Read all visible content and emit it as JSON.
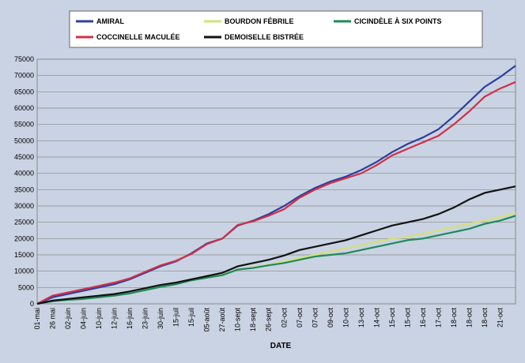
{
  "chart_data": {
    "type": "line",
    "xlabel": "DATE",
    "categories": [
      "01-mai",
      "26 mai",
      "02-juin",
      "04-juin",
      "10-juin",
      "12-juin",
      "16-juin",
      "23-juin",
      "30-juin",
      "15-juil",
      "15-juil",
      "05-août",
      "27-août",
      "10-sept",
      "18-sept",
      "26-sept",
      "02-oct",
      "07-oct",
      "07-oct",
      "09-oct",
      "10-oct",
      "13-oct",
      "14-oct",
      "15-oct",
      "15-oct",
      "16-oct",
      "17-oct",
      "18-oct",
      "18-oct",
      "18-oct",
      "21-oct",
      null
    ],
    "series": [
      {
        "name": "AMIRAL",
        "color": "#2f3f9e",
        "values": [
          0,
          2000,
          3000,
          4000,
          5000,
          6000,
          7500,
          9500,
          11500,
          13000,
          15500,
          18500,
          20000,
          24000,
          25500,
          27500,
          30000,
          33000,
          35500,
          37500,
          39000,
          41000,
          43500,
          46500,
          49000,
          51000,
          53500,
          57500,
          62000,
          66500,
          69500,
          73000
        ]
      },
      {
        "name": "BOURDON FÉBRILE",
        "color": "#d6e07a",
        "values": [
          0,
          800,
          1200,
          1500,
          2000,
          2500,
          3200,
          4200,
          5200,
          6000,
          7200,
          8000,
          9000,
          10500,
          11200,
          12000,
          13000,
          14000,
          15000,
          16000,
          17000,
          18000,
          19000,
          20000,
          20500,
          21500,
          22500,
          23500,
          24500,
          25500,
          26500,
          28000
        ]
      },
      {
        "name": "CICINDÈLE À SIX POINTS",
        "color": "#1d8a5a",
        "values": [
          0,
          800,
          1200,
          1500,
          2000,
          2500,
          3200,
          4200,
          5200,
          6000,
          7200,
          8000,
          8800,
          10500,
          11000,
          11800,
          12500,
          13500,
          14500,
          15000,
          15500,
          16500,
          17500,
          18500,
          19500,
          20000,
          21000,
          22000,
          23000,
          24500,
          25500,
          27000
        ]
      },
      {
        "name": "COCCINELLE MACULÉE",
        "color": "#d03048",
        "values": [
          0,
          2500,
          3500,
          4500,
          5500,
          6500,
          7800,
          9800,
          11800,
          13200,
          15300,
          18300,
          20000,
          24200,
          25300,
          27000,
          29000,
          32500,
          35000,
          37000,
          38500,
          40000,
          42500,
          45500,
          47500,
          49500,
          51500,
          55000,
          59000,
          63500,
          66000,
          68000
        ]
      },
      {
        "name": "DEMOISELLE BISTRÉE",
        "color": "#111111",
        "values": [
          0,
          1000,
          1500,
          2000,
          2500,
          3000,
          3800,
          4800,
          5800,
          6500,
          7500,
          8500,
          9500,
          11500,
          12500,
          13500,
          14800,
          16500,
          17500,
          18500,
          19500,
          21000,
          22500,
          24000,
          25000,
          26000,
          27500,
          29500,
          32000,
          34000,
          35000,
          36000
        ]
      }
    ],
    "ylim": [
      0,
      75000
    ],
    "yticks": [
      0,
      5000,
      10000,
      15000,
      20000,
      25000,
      30000,
      35000,
      40000,
      45000,
      50000,
      55000,
      60000,
      65000,
      70000,
      75000
    ],
    "grid": true,
    "legend": "top"
  }
}
